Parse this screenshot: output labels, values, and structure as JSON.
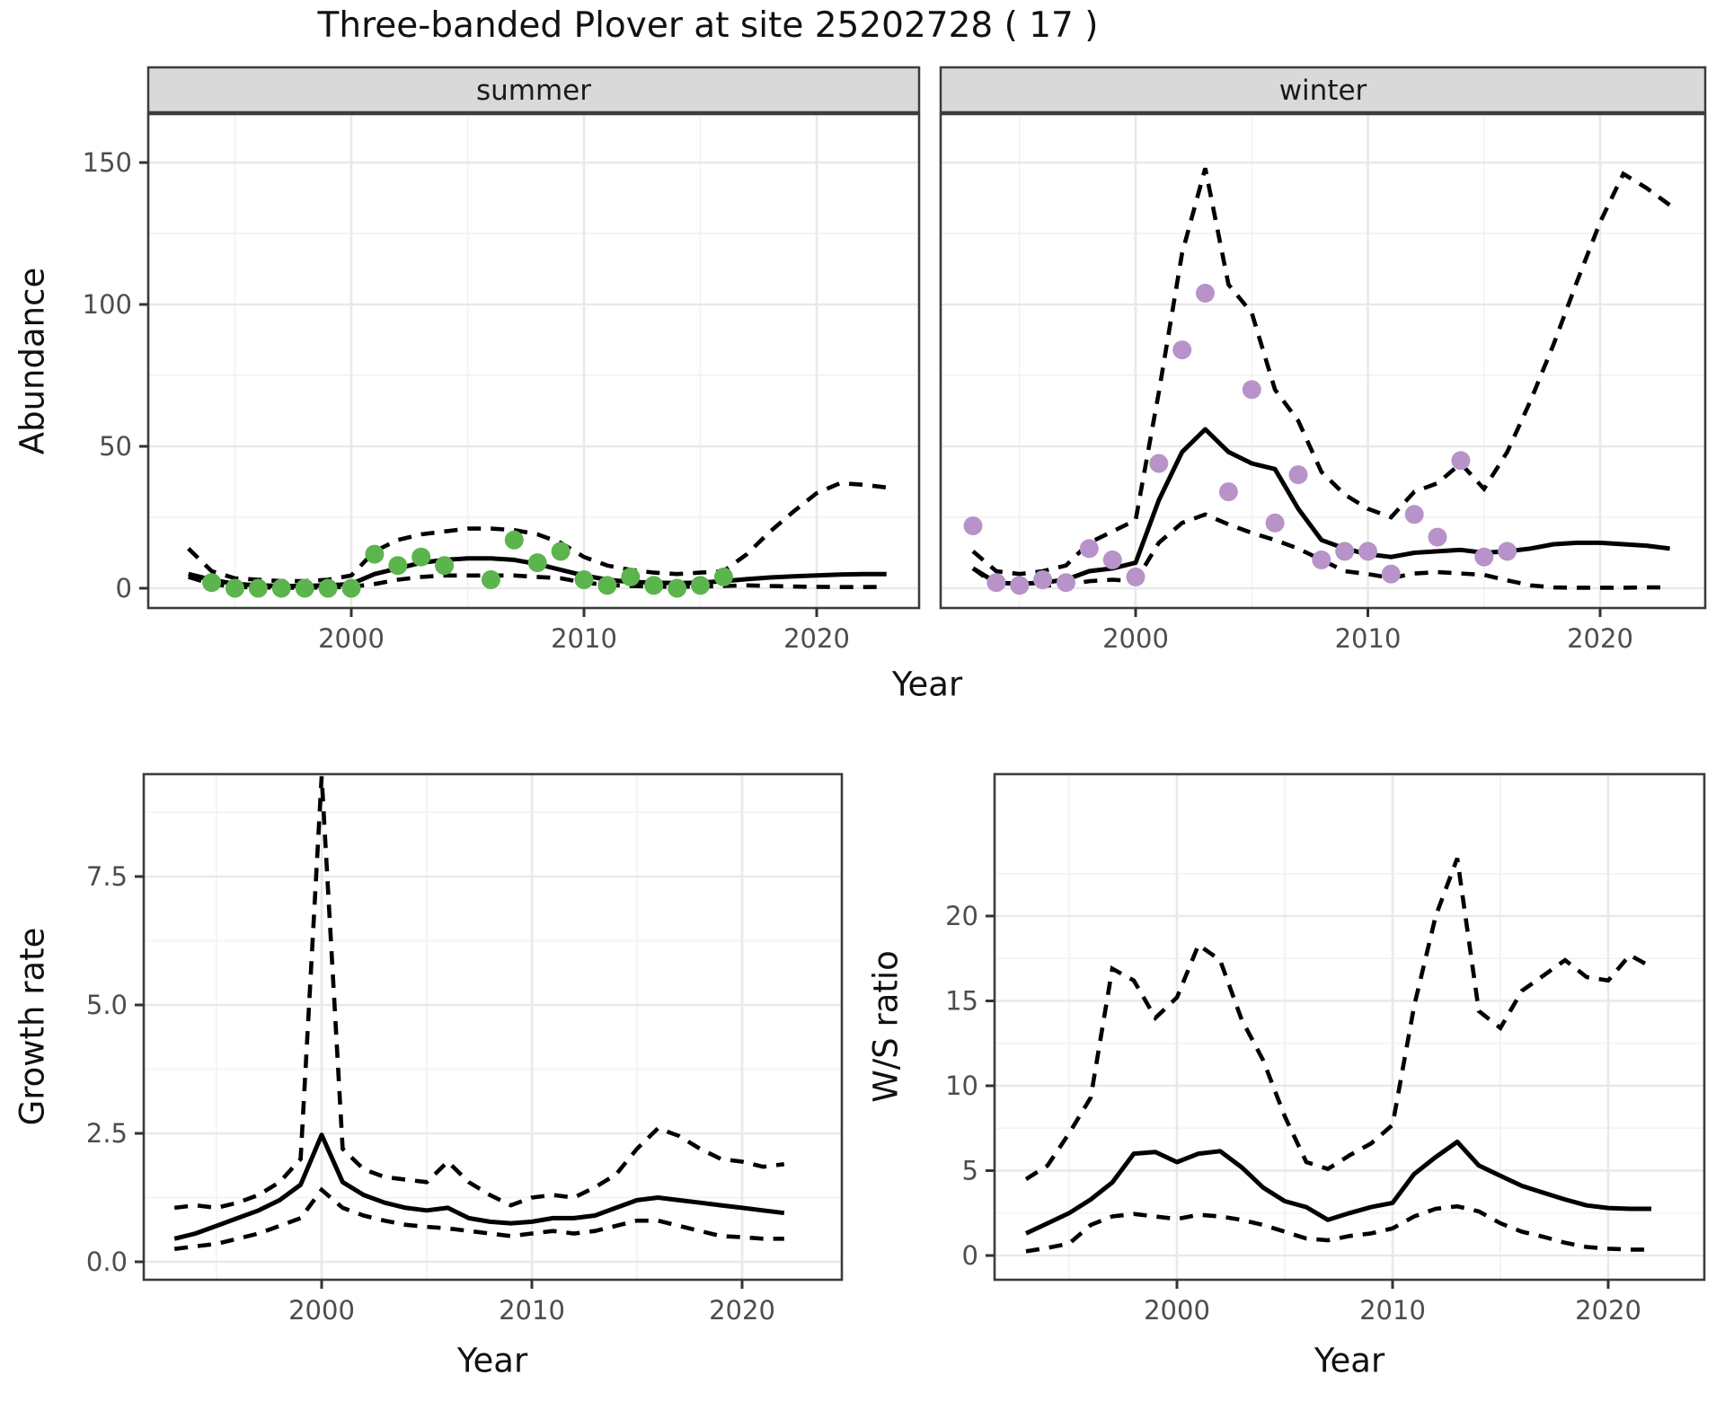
{
  "title": "Three-banded Plover at site 25202728 ( 17 )",
  "axes": {
    "top_y_label": "Abundance",
    "top_x_label": "Year",
    "growth_y_label": "Growth rate",
    "growth_x_label": "Year",
    "ws_y_label": "W/S ratio",
    "ws_x_label": "Year"
  },
  "colors": {
    "summer_point": "#5cb44d",
    "winter_point": "#b793c9",
    "line": "#000000",
    "grid_major": "#e9e9e9",
    "grid_minor": "#f3f3f3",
    "strip_fill": "#d9d9d9",
    "panel_border": "#3c3c3c",
    "tick_mark": "#333333",
    "tick_text": "#4d4d4d",
    "background": "#ffffff"
  },
  "chart_data": [
    {
      "id": "summer",
      "type": "line",
      "facet_label": "summer",
      "xlabel": "Year",
      "ylabel": "Abundance",
      "ylim": [
        0,
        150
      ],
      "x_ticks": [
        "2000",
        "2010",
        "2020"
      ],
      "x_tick_years": [
        2000,
        2010,
        2020
      ],
      "x_minor_years": [
        1995,
        2005,
        2015
      ],
      "y_ticks": [
        "0",
        "50",
        "100",
        "150"
      ],
      "y_tick_values": [
        0,
        50,
        100,
        150
      ],
      "points": {
        "years": [
          1994,
          1995,
          1996,
          1997,
          1998,
          1999,
          2000,
          2001,
          2002,
          2003,
          2004,
          2006,
          2007,
          2008,
          2009,
          2010,
          2011,
          2012,
          2013,
          2014,
          2015,
          2016
        ],
        "values": [
          2,
          0,
          0,
          0,
          0,
          0,
          0,
          12,
          8,
          11,
          8,
          3,
          17,
          9,
          13,
          3,
          1,
          4,
          1,
          0,
          1,
          4
        ]
      },
      "fit_years": [
        1993,
        1994,
        1995,
        1996,
        1997,
        1998,
        1999,
        2000,
        2001,
        2002,
        2003,
        2004,
        2005,
        2006,
        2007,
        2008,
        2009,
        2010,
        2011,
        2012,
        2013,
        2014,
        2015,
        2016,
        2017,
        2018,
        2019,
        2020,
        2021,
        2022,
        2023
      ],
      "fit": [
        5,
        3,
        1.5,
        1,
        0.8,
        0.8,
        1,
        1.5,
        5,
        7,
        9,
        10,
        10.5,
        10.5,
        10,
        8.5,
        6.5,
        4.5,
        3,
        2.2,
        2,
        1.8,
        2,
        2.5,
        3.2,
        3.8,
        4.2,
        4.5,
        4.8,
        5,
        5
      ],
      "upper": [
        14,
        6,
        3.5,
        3,
        2.5,
        2.5,
        3,
        4.5,
        13,
        17,
        19,
        20,
        21,
        21,
        20.5,
        19,
        16,
        11,
        8,
        6.5,
        5.5,
        5,
        5.5,
        6,
        12,
        20,
        27,
        33.5,
        37,
        36.5,
        35.5
      ],
      "lower": [
        4,
        1.5,
        0.5,
        0.3,
        0.2,
        0.2,
        0.3,
        0.5,
        1.5,
        3,
        4,
        4.5,
        4.5,
        4.5,
        4.5,
        4,
        3.5,
        2,
        1.2,
        0.8,
        0.6,
        0.5,
        0.6,
        0.8,
        1,
        0.8,
        0.6,
        0.5,
        0.4,
        0.4,
        0.5
      ]
    },
    {
      "id": "winter",
      "type": "line",
      "facet_label": "winter",
      "xlabel": "Year",
      "ylabel": "Abundance",
      "ylim": [
        0,
        150
      ],
      "x_ticks": [
        "2000",
        "2010",
        "2020"
      ],
      "x_tick_years": [
        2000,
        2010,
        2020
      ],
      "x_minor_years": [
        1995,
        2005,
        2015
      ],
      "y_ticks": [
        "0",
        "50",
        "100",
        "150"
      ],
      "y_tick_values": [
        0,
        50,
        100,
        150
      ],
      "points": {
        "years": [
          1993,
          1994,
          1995,
          1996,
          1997,
          1998,
          1999,
          2000,
          2001,
          2002,
          2003,
          2004,
          2005,
          2006,
          2007,
          2008,
          2009,
          2010,
          2011,
          2012,
          2013,
          2014,
          2015,
          2016
        ],
        "values": [
          22,
          2,
          1,
          3,
          2,
          14,
          10,
          4,
          44,
          84,
          104,
          34,
          70,
          23,
          40,
          10,
          13,
          13,
          5,
          26,
          18,
          45,
          11,
          13
        ]
      },
      "fit_years": [
        1993,
        1994,
        1995,
        1996,
        1997,
        1998,
        1999,
        2000,
        2001,
        2002,
        2003,
        2004,
        2005,
        2006,
        2007,
        2008,
        2009,
        2010,
        2011,
        2012,
        2013,
        2014,
        2015,
        2016,
        2017,
        2018,
        2019,
        2020,
        2021,
        2022,
        2023
      ],
      "fit": [
        7,
        2,
        1.5,
        2,
        3,
        6,
        7,
        9,
        31,
        48,
        56,
        48,
        44,
        42,
        28,
        17,
        14,
        12,
        11,
        12.5,
        13,
        13.5,
        12.5,
        13,
        14,
        15.5,
        16,
        16,
        15.5,
        15,
        14
      ],
      "upper": [
        13,
        6,
        5,
        6,
        8,
        16,
        20,
        24,
        69,
        118,
        148,
        107,
        97,
        70,
        59,
        41,
        33,
        28,
        25,
        34,
        37,
        44,
        35,
        48,
        66,
        86,
        108,
        129,
        146,
        141,
        135
      ],
      "lower": [
        7,
        1,
        0.5,
        1,
        1,
        2.5,
        3,
        2.5,
        16,
        23,
        26,
        22.5,
        19.5,
        17,
        14,
        10,
        6,
        5,
        3.6,
        5.2,
        5.7,
        5.2,
        4.7,
        2.8,
        1,
        0.3,
        0.2,
        0.2,
        0.2,
        0.3,
        0.3
      ]
    },
    {
      "id": "growth",
      "type": "line",
      "facet_label": null,
      "xlabel": "Year",
      "ylabel": "Growth rate",
      "ylim": [
        0,
        9.5
      ],
      "x_ticks": [
        "2000",
        "2010",
        "2020"
      ],
      "x_tick_years": [
        2000,
        2010,
        2020
      ],
      "x_minor_years": [
        1995,
        2005,
        2015
      ],
      "y_ticks": [
        "0.0",
        "2.5",
        "5.0",
        "7.5"
      ],
      "y_tick_values": [
        0,
        2.5,
        5,
        7.5
      ],
      "points": null,
      "fit_years": [
        1993,
        1994,
        1995,
        1996,
        1997,
        1998,
        1999,
        2000,
        2001,
        2002,
        2003,
        2004,
        2005,
        2006,
        2007,
        2008,
        2009,
        2010,
        2011,
        2012,
        2013,
        2014,
        2015,
        2016,
        2017,
        2018,
        2019,
        2020,
        2021,
        2022
      ],
      "fit": [
        0.45,
        0.55,
        0.7,
        0.85,
        1.0,
        1.2,
        1.5,
        2.47,
        1.55,
        1.3,
        1.15,
        1.05,
        1.0,
        1.05,
        0.85,
        0.78,
        0.75,
        0.78,
        0.85,
        0.85,
        0.9,
        1.05,
        1.2,
        1.25,
        1.2,
        1.15,
        1.1,
        1.05,
        1.0,
        0.95
      ],
      "upper": [
        1.05,
        1.1,
        1.05,
        1.15,
        1.3,
        1.55,
        2.0,
        9.45,
        2.2,
        1.8,
        1.65,
        1.6,
        1.55,
        1.95,
        1.55,
        1.3,
        1.1,
        1.25,
        1.3,
        1.25,
        1.45,
        1.7,
        2.2,
        2.6,
        2.45,
        2.2,
        2.0,
        1.95,
        1.85,
        1.9
      ],
      "lower": [
        0.25,
        0.3,
        0.35,
        0.45,
        0.55,
        0.7,
        0.85,
        1.4,
        1.05,
        0.9,
        0.8,
        0.72,
        0.68,
        0.65,
        0.6,
        0.55,
        0.5,
        0.55,
        0.6,
        0.55,
        0.6,
        0.7,
        0.8,
        0.8,
        0.7,
        0.6,
        0.5,
        0.48,
        0.45,
        0.45
      ]
    },
    {
      "id": "ws",
      "type": "line",
      "facet_label": null,
      "xlabel": "Year",
      "ylabel": "W/S ratio",
      "ylim": [
        0,
        23.5
      ],
      "x_ticks": [
        "2000",
        "2010",
        "2020"
      ],
      "x_tick_years": [
        2000,
        2010,
        2020
      ],
      "x_minor_years": [
        1995,
        2005,
        2015
      ],
      "y_ticks": [
        "0",
        "5",
        "10",
        "15",
        "20"
      ],
      "y_tick_values": [
        0,
        5,
        10,
        15,
        20
      ],
      "points": null,
      "fit_years": [
        1993,
        1994,
        1995,
        1996,
        1997,
        1998,
        1999,
        2000,
        2001,
        2002,
        2003,
        2004,
        2005,
        2006,
        2007,
        2008,
        2009,
        2010,
        2011,
        2012,
        2013,
        2014,
        2015,
        2016,
        2017,
        2018,
        2019,
        2020,
        2021,
        2022
      ],
      "fit": [
        1.3,
        1.9,
        2.5,
        3.3,
        4.3,
        6.0,
        6.1,
        5.5,
        6.0,
        6.15,
        5.2,
        4.0,
        3.2,
        2.85,
        2.1,
        2.5,
        2.85,
        3.1,
        4.8,
        5.8,
        6.7,
        5.3,
        4.7,
        4.1,
        3.7,
        3.3,
        2.95,
        2.8,
        2.75,
        2.75
      ],
      "upper": [
        4.5,
        5.3,
        7.2,
        9.3,
        16.9,
        16.2,
        14.0,
        15.2,
        18.3,
        17.4,
        13.9,
        11.5,
        8.2,
        5.5,
        5.1,
        5.9,
        6.6,
        7.7,
        14.7,
        20.0,
        23.4,
        14.4,
        13.4,
        15.6,
        16.5,
        17.4,
        16.4,
        16.2,
        17.7,
        17.0
      ],
      "lower": [
        0.25,
        0.45,
        0.7,
        1.8,
        2.3,
        2.45,
        2.3,
        2.15,
        2.4,
        2.3,
        2.1,
        1.8,
        1.4,
        1.0,
        0.9,
        1.15,
        1.3,
        1.6,
        2.3,
        2.75,
        2.9,
        2.6,
        1.9,
        1.4,
        1.1,
        0.75,
        0.5,
        0.4,
        0.35,
        0.35
      ]
    }
  ]
}
